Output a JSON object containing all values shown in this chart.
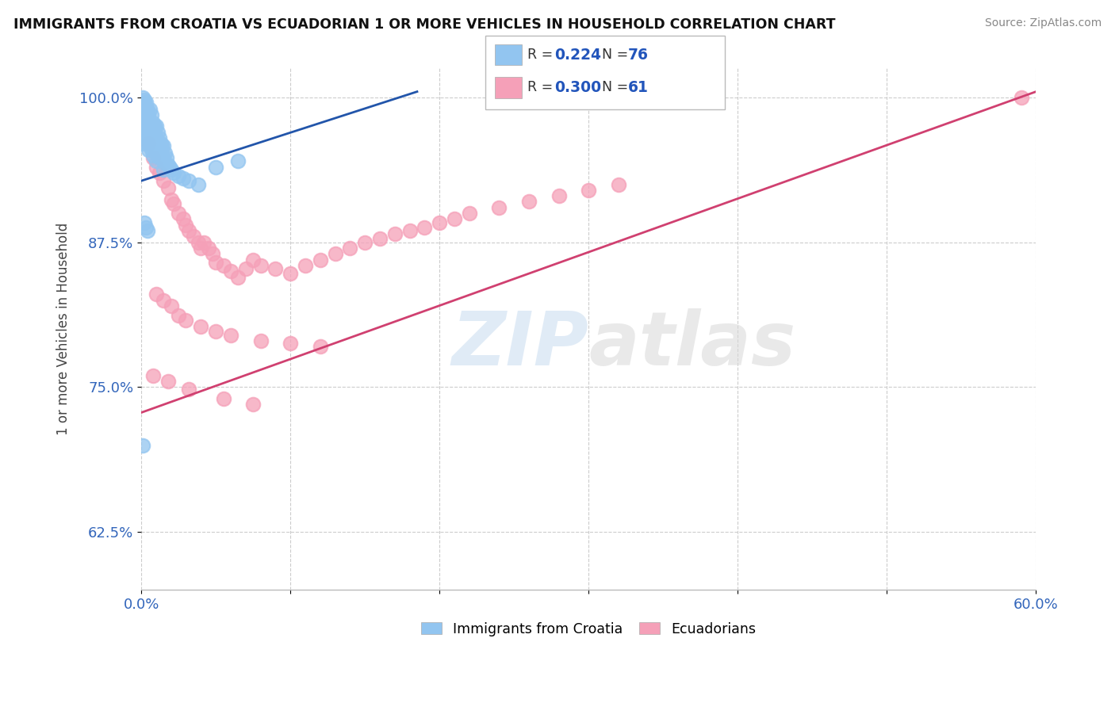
{
  "title": "IMMIGRANTS FROM CROATIA VS ECUADORIAN 1 OR MORE VEHICLES IN HOUSEHOLD CORRELATION CHART",
  "source": "Source: ZipAtlas.com",
  "xmin": 0.0,
  "xmax": 0.6,
  "ymin": 0.575,
  "ymax": 1.025,
  "R_blue": 0.224,
  "N_blue": 76,
  "R_pink": 0.3,
  "N_pink": 61,
  "blue_color": "#92C5F0",
  "pink_color": "#F5A0B8",
  "trend_blue": "#2255AA",
  "trend_pink": "#D04070",
  "watermark_zip": "ZIP",
  "watermark_atlas": "atlas",
  "legend_label_blue": "Immigrants from Croatia",
  "legend_label_pink": "Ecuadorians",
  "blue_scatter_x": [
    0.001,
    0.001,
    0.002,
    0.002,
    0.002,
    0.003,
    0.003,
    0.003,
    0.003,
    0.004,
    0.004,
    0.004,
    0.004,
    0.005,
    0.005,
    0.005,
    0.005,
    0.006,
    0.006,
    0.006,
    0.006,
    0.007,
    0.007,
    0.007,
    0.007,
    0.008,
    0.008,
    0.008,
    0.008,
    0.009,
    0.009,
    0.009,
    0.01,
    0.01,
    0.01,
    0.01,
    0.011,
    0.011,
    0.011,
    0.012,
    0.012,
    0.012,
    0.013,
    0.013,
    0.014,
    0.014,
    0.015,
    0.015,
    0.015,
    0.016,
    0.016,
    0.017,
    0.018,
    0.019,
    0.02,
    0.022,
    0.025,
    0.028,
    0.032,
    0.038,
    0.001,
    0.002,
    0.003,
    0.001,
    0.004,
    0.005,
    0.006,
    0.007,
    0.008,
    0.009,
    0.002,
    0.003,
    0.004,
    0.05,
    0.065,
    0.001
  ],
  "blue_scatter_y": [
    0.995,
    0.985,
    0.995,
    0.985,
    0.975,
    0.99,
    0.985,
    0.975,
    0.965,
    0.99,
    0.98,
    0.97,
    0.96,
    0.985,
    0.975,
    0.965,
    0.955,
    0.99,
    0.978,
    0.968,
    0.958,
    0.985,
    0.975,
    0.965,
    0.955,
    0.978,
    0.97,
    0.96,
    0.95,
    0.975,
    0.965,
    0.955,
    0.975,
    0.965,
    0.955,
    0.945,
    0.97,
    0.96,
    0.95,
    0.965,
    0.957,
    0.948,
    0.96,
    0.95,
    0.958,
    0.948,
    0.958,
    0.948,
    0.938,
    0.952,
    0.943,
    0.948,
    0.942,
    0.94,
    0.938,
    0.935,
    0.932,
    0.93,
    0.928,
    0.925,
    1.0,
    0.998,
    0.996,
    0.96,
    0.985,
    0.978,
    0.972,
    0.968,
    0.962,
    0.957,
    0.892,
    0.888,
    0.885,
    0.94,
    0.945,
    0.7
  ],
  "pink_scatter_x": [
    0.005,
    0.008,
    0.01,
    0.012,
    0.015,
    0.018,
    0.02,
    0.022,
    0.025,
    0.028,
    0.03,
    0.032,
    0.035,
    0.038,
    0.04,
    0.042,
    0.045,
    0.048,
    0.05,
    0.055,
    0.06,
    0.065,
    0.07,
    0.075,
    0.08,
    0.09,
    0.1,
    0.11,
    0.12,
    0.13,
    0.14,
    0.15,
    0.16,
    0.17,
    0.18,
    0.19,
    0.2,
    0.21,
    0.22,
    0.24,
    0.26,
    0.28,
    0.3,
    0.32,
    0.01,
    0.015,
    0.02,
    0.025,
    0.03,
    0.04,
    0.05,
    0.06,
    0.08,
    0.1,
    0.12,
    0.008,
    0.018,
    0.032,
    0.055,
    0.075,
    0.59
  ],
  "pink_scatter_y": [
    0.96,
    0.948,
    0.94,
    0.935,
    0.928,
    0.922,
    0.912,
    0.908,
    0.9,
    0.895,
    0.89,
    0.885,
    0.88,
    0.875,
    0.87,
    0.875,
    0.87,
    0.865,
    0.858,
    0.855,
    0.85,
    0.845,
    0.852,
    0.86,
    0.855,
    0.852,
    0.848,
    0.855,
    0.86,
    0.865,
    0.87,
    0.875,
    0.878,
    0.882,
    0.885,
    0.888,
    0.892,
    0.895,
    0.9,
    0.905,
    0.91,
    0.915,
    0.92,
    0.925,
    0.83,
    0.825,
    0.82,
    0.812,
    0.808,
    0.802,
    0.798,
    0.795,
    0.79,
    0.788,
    0.785,
    0.76,
    0.755,
    0.748,
    0.74,
    0.735,
    1.0
  ],
  "blue_trend_x": [
    0.0,
    0.185
  ],
  "blue_trend_y": [
    0.928,
    1.005
  ],
  "pink_trend_x": [
    0.0,
    0.6
  ],
  "pink_trend_y": [
    0.728,
    1.005
  ]
}
